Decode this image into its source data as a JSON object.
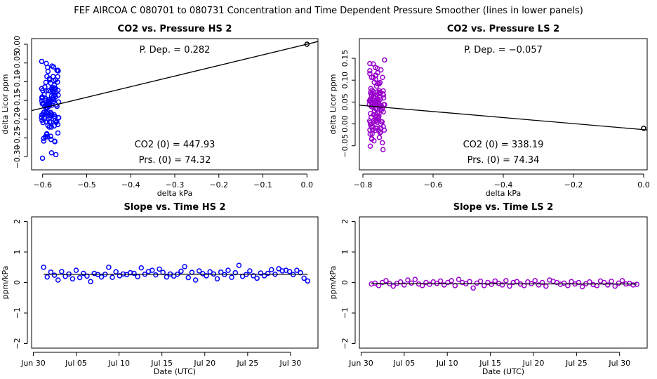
{
  "figure": {
    "title": "FEF   AIRCOA C   080701 to 080731   Concentration and Time Dependent Pressure Smoother (lines in lower panels)"
  },
  "chart_data": [
    {
      "id": "hs-pressure",
      "type": "scatter",
      "title": "CO2 vs. Pressure HS 2",
      "xlabel": "delta kPa",
      "ylabel": "delta Licor ppm",
      "xlim": [
        -0.625,
        0.025
      ],
      "ylim": [
        -0.335,
        0.015
      ],
      "xticks": [
        -0.6,
        -0.5,
        -0.4,
        -0.3,
        -0.2,
        -0.1,
        0.0
      ],
      "xtick_labels": [
        "−0.6",
        "−0.5",
        "−0.4",
        "−0.3",
        "−0.2",
        "−0.1",
        "0.0"
      ],
      "yticks": [
        0.0,
        -0.05,
        -0.1,
        -0.15,
        -0.2,
        -0.25,
        -0.3
      ],
      "ytick_labels": [
        "0.00",
        "−0.05",
        "−0.10",
        "−0.15",
        "−0.20",
        "−0.25",
        "−0.30"
      ],
      "point_color": "#0000ff",
      "cluster": {
        "n": 120,
        "x_range": [
          -0.603,
          -0.563
        ],
        "y_range": [
          -0.32,
          -0.005
        ],
        "seed": 11
      },
      "fit_line": {
        "x": [
          -0.625,
          0.025
        ],
        "y": [
          -0.177,
          0.0072
        ]
      },
      "reference_point": {
        "x": 0.0,
        "y": 0.0
      },
      "annotations": {
        "p_dep": "P. Dep. =  0.282",
        "co2_0": "CO2 (0) =  447.93",
        "prs_0": "Prs. (0) = 74.32"
      }
    },
    {
      "id": "ls-pressure",
      "type": "scatter",
      "title": "CO2 vs. Pressure LS 2",
      "xlabel": "delta kPa",
      "ylabel": "delta Licor ppm",
      "xlim": [
        -0.81,
        0.01
      ],
      "ylim": [
        -0.105,
        0.195
      ],
      "xticks": [
        -0.8,
        -0.6,
        -0.4,
        -0.2,
        0.0
      ],
      "xtick_labels": [
        "−0.8",
        "−0.6",
        "−0.4",
        "−0.2",
        "0.0"
      ],
      "yticks": [
        0.15,
        0.1,
        0.05,
        0.0,
        -0.05
      ],
      "ytick_labels": [
        "0.15",
        "0.10",
        "0.05",
        "0.00",
        "−0.05"
      ],
      "point_color": "#9900cc",
      "cluster": {
        "n": 120,
        "x_range": [
          -0.782,
          -0.738
        ],
        "y_range": [
          -0.095,
          0.185
        ],
        "seed": 23
      },
      "fit_line": {
        "x": [
          -0.81,
          0.01
        ],
        "y": [
          0.0428,
          -0.0138
        ]
      },
      "reference_point": {
        "x": 0.0,
        "y": -0.01
      },
      "annotations": {
        "p_dep": "P. Dep. =  −0.057",
        "co2_0": "CO2 (0) =  338.19",
        "prs_0": "Prs. (0) = 74.34"
      }
    },
    {
      "id": "hs-time",
      "type": "scatter",
      "title": "Slope vs. Time HS 2",
      "xlabel": "Date (UTC)",
      "ylabel": "ppm/kPa",
      "xlim": [
        -0.2,
        33.2
      ],
      "ylim": [
        -2.15,
        2.15
      ],
      "xticks": [
        0,
        5,
        10,
        15,
        20,
        25,
        30
      ],
      "xtick_labels": [
        "Jun 30",
        "Jul 05",
        "Jul 10",
        "Jul 15",
        "Jul 20",
        "Jul 25",
        "Jul 30"
      ],
      "yticks": [
        -2,
        -1,
        0,
        1,
        2
      ],
      "ytick_labels": [
        "−2",
        "−1",
        "0",
        "1",
        "2"
      ],
      "point_color": "#0000ff",
      "series_x": [
        1.2,
        32.0
      ],
      "series_y": [
        0.5,
        0.18,
        0.34,
        0.24,
        0.08,
        0.36,
        0.2,
        0.28,
        0.12,
        0.4,
        0.16,
        0.3,
        0.21,
        0.03,
        0.3,
        0.26,
        0.18,
        0.27,
        0.5,
        0.17,
        0.35,
        0.22,
        0.28,
        0.26,
        0.32,
        0.3,
        0.19,
        0.48,
        0.27,
        0.36,
        0.4,
        0.25,
        0.44,
        0.33,
        0.18,
        0.28,
        0.21,
        0.27,
        0.37,
        0.52,
        0.16,
        0.33,
        0.08,
        0.38,
        0.29,
        0.22,
        0.35,
        0.28,
        0.12,
        0.34,
        0.26,
        0.4,
        0.17,
        0.32,
        0.56,
        0.2,
        0.26,
        0.38,
        0.22,
        0.14,
        0.31,
        0.22,
        0.3,
        0.42,
        0.27,
        0.45,
        0.38,
        0.4,
        0.36,
        0.26,
        0.4,
        0.32,
        0.14,
        0.05
      ],
      "smoother": {
        "x": [
          1.2,
          32.0
        ],
        "y": [
          0.27,
          0.27
        ]
      }
    },
    {
      "id": "ls-time",
      "type": "scatter",
      "title": "Slope vs. Time LS 2",
      "xlabel": "Date (UTC)",
      "ylabel": "ppm/kPa",
      "xlim": [
        -0.2,
        33.2
      ],
      "ylim": [
        -2.15,
        2.15
      ],
      "xticks": [
        0,
        5,
        10,
        15,
        20,
        25,
        30
      ],
      "xtick_labels": [
        "Jun 30",
        "Jul 05",
        "Jul 10",
        "Jul 15",
        "Jul 20",
        "Jul 25",
        "Jul 30"
      ],
      "yticks": [
        -2,
        -1,
        0,
        1,
        2
      ],
      "ytick_labels": [
        "−2",
        "−1",
        "0",
        "1",
        "2"
      ],
      "point_color": "#9900cc",
      "series_x": [
        1.2,
        32.0
      ],
      "series_y": [
        -0.05,
        -0.02,
        -0.1,
        0.0,
        0.06,
        -0.04,
        -0.12,
        -0.03,
        0.02,
        -0.08,
        0.08,
        -0.02,
        0.1,
        -0.05,
        -0.1,
        0.0,
        -0.06,
        0.02,
        -0.03,
        0.05,
        -0.08,
        0.0,
        0.06,
        -0.1,
        0.1,
        0.0,
        -0.04,
        0.03,
        -0.18,
        -0.02,
        0.04,
        -0.1,
        0.0,
        -0.06,
        0.05,
        -0.03,
        -0.08,
        0.06,
        -0.12,
        0.0,
        0.03,
        -0.05,
        -0.1,
        0.02,
        -0.04,
        0.06,
        -0.08,
        0.0,
        -0.12,
        0.08,
        0.04,
        0.0,
        -0.06,
        -0.02,
        -0.1,
        0.03,
        -0.05,
        0.0,
        -0.14,
        -0.04,
        0.02,
        -0.07,
        -0.1,
        0.05,
        0.0,
        -0.08,
        0.04,
        -0.12,
        -0.02,
        0.06,
        -0.05,
        -0.03,
        -0.08,
        -0.06
      ],
      "smoother": {
        "x": [
          1.2,
          32.0
        ],
        "y": [
          -0.04,
          -0.05
        ]
      }
    }
  ]
}
